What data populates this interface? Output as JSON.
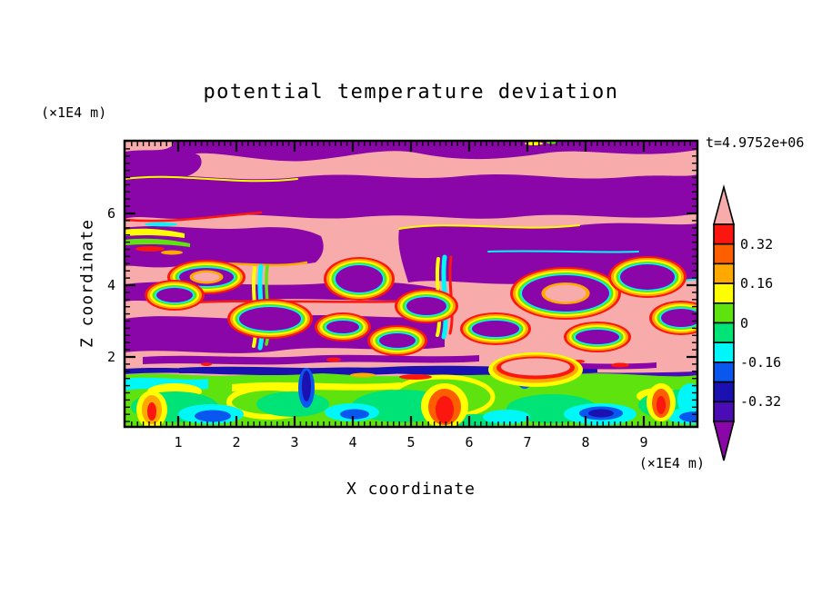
{
  "chart": {
    "title": "potential temperature deviation",
    "timestamp": "t=4.9752e+06",
    "x_axis": {
      "label": "X coordinate",
      "unit": "(×1E4 m)",
      "major_ticks": [
        1,
        2,
        3,
        4,
        5,
        6,
        7,
        8,
        9
      ],
      "minor_tick_step": 0.1,
      "range": [
        0.08,
        9.92
      ]
    },
    "z_axis": {
      "label": "Z coordinate",
      "unit": "(×1E4 m)",
      "major_ticks": [
        2,
        4,
        6
      ],
      "minor_tick_step": 0.2,
      "range": [
        0.05,
        8.02
      ]
    },
    "colorbar": {
      "labels": [
        "0.32",
        "0.16",
        "0",
        "-0.16",
        "-0.32"
      ],
      "levels": [
        0.4,
        0.32,
        0.24,
        0.16,
        0.08,
        0,
        -0.08,
        -0.16,
        -0.24,
        -0.32,
        -0.4
      ],
      "box_colors_top_to_bottom": [
        "#FB1710",
        "#FD5E00",
        "#FFA800",
        "#FFFF00",
        "#5FE30E",
        "#00E377",
        "#00F7F7",
        "#0A57F0",
        "#1B10B0",
        "#4A0CB5"
      ],
      "over_color": "#F7ABAB",
      "under_color": "#8A06A8",
      "outline_color": "#000000"
    }
  },
  "chart_data": {
    "type": "filled_contour",
    "title": "potential temperature deviation",
    "xlabel": "X coordinate (×1E4 m)",
    "ylabel": "Z coordinate (×1E4 m)",
    "time_annotation": "t=4.9752e+06",
    "x_range": [
      0.08,
      9.92
    ],
    "z_range": [
      0.05,
      8.02
    ],
    "contour_levels": [
      -0.4,
      -0.32,
      -0.24,
      -0.16,
      -0.08,
      0,
      0.08,
      0.16,
      0.24,
      0.32,
      0.4
    ],
    "level_colors_low_to_high": [
      "#8A06A8",
      "#4A0CB5",
      "#1B10B0",
      "#0A57F0",
      "#00F7F7",
      "#00E377",
      "#5FE30E",
      "#FFFF00",
      "#FFA800",
      "#FD5E00",
      "#FB1710",
      "#F7ABAB"
    ],
    "legend_position": "right-vertical-colorbar-with-over-under-arrows",
    "grid": false,
    "regions": [
      {
        "zone": "upper (z≈5–8)",
        "description": "alternating wavy horizontal bands saturated above +0.40 (pink) and below -0.40 (purple) with thin rainbow fringes at band edges (gravity waves)"
      },
      {
        "zone": "middle (z≈2.5–5)",
        "description": "pink background with purple blobs ringed by red/orange/yellow/green/cyan contour fringes (breaking waves, strong mixing)"
      },
      {
        "zone": "interface (z≈1.9–2.3)",
        "description": "thin streaky layers of purple, navy and red filaments (capping inversion)"
      },
      {
        "zone": "lower (z≈0–1.9)",
        "description": "green/spring-green convective layer with cyan patches, blue/navy eddies and orange-red rising plumes near x≈1.7, 4.9, 7.1; pink intrusion near x≈5.6–6.3"
      }
    ]
  }
}
